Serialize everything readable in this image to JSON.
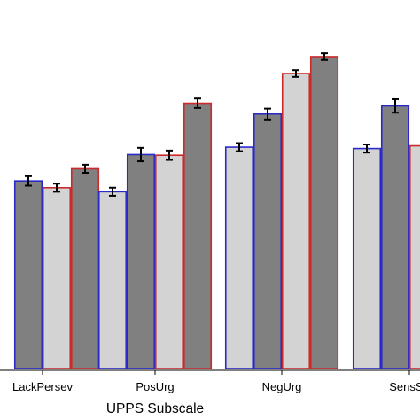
{
  "chart_data": {
    "type": "bar",
    "xlabel": "UPPS Subscale",
    "categories": [
      "LackPersev",
      "PosUrg",
      "NegUrg",
      "SensSe"
    ],
    "series": [
      {
        "fill": "#d3d3d3",
        "stroke": "#2a2ac8",
        "values": [
          null,
          2.62,
          3.28,
          3.26
        ],
        "errors": [
          null,
          0.06,
          0.06,
          0.06
        ]
      },
      {
        "fill": "#808080",
        "stroke": "#2a2ac8",
        "values": [
          2.78,
          3.17,
          3.77,
          3.89
        ],
        "errors": [
          0.07,
          0.1,
          0.08,
          0.1
        ]
      },
      {
        "fill": "#d3d3d3",
        "stroke": "#cc2a2a",
        "values": [
          2.68,
          3.16,
          4.37,
          3.3
        ],
        "errors": [
          0.06,
          0.07,
          0.05,
          0.06
        ]
      },
      {
        "fill": "#808080",
        "stroke": "#cc2a2a",
        "values": [
          2.96,
          3.93,
          4.62,
          null
        ],
        "errors": [
          0.06,
          0.07,
          0.05,
          null
        ]
      }
    ],
    "ylim": [
      0,
      5.1
    ],
    "grid": false,
    "colors": {
      "light_fill": "#d3d3d3",
      "dark_fill": "#808080",
      "outline_a": "#2a2ac8",
      "outline_b": "#cc2a2a",
      "error_bar": "#000000",
      "axis": "#000000"
    }
  }
}
